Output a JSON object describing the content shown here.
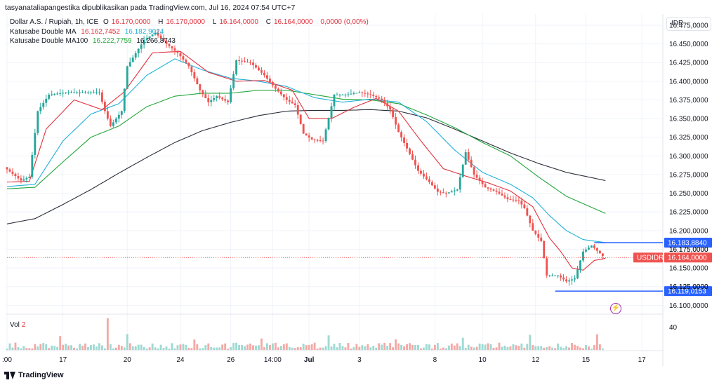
{
  "header": {
    "caption": "tasyanataliapangestika dipublikasikan pada TradingView.com, Jul 16, 2024 07:54 UTC+7",
    "symbol": "Dollar A.S. / Rupiah, 1h, ICE",
    "o_label": "O",
    "o_value": "16.170,0000",
    "h_label": "H",
    "h_value": "16.170,0000",
    "l_label": "L",
    "l_value": "16.164,0000",
    "c_label": "C",
    "c_value": "16.164,0000",
    "change": "0,0000 (0,00%)",
    "ma_name": "Katusabe Double MA",
    "ma_value1": "16.162,7452",
    "ma_value2": "16.182,9024",
    "ma100_name": "Katusabe Double MA100",
    "ma100_value1": "16.222,7759",
    "ma100_value2": "16.266,8743"
  },
  "currency": "IDR",
  "volume": {
    "label": "Vol",
    "value": "2",
    "axis_label": "40"
  },
  "watermark": "TradingView",
  "colors": {
    "up": "#26a69a",
    "down": "#ef5350",
    "ma_fast": "#e0323e",
    "ma_slow": "#22b2d8",
    "ma100_fast": "#23a63b",
    "ma100_slow": "#2a2e39",
    "price_line": "#2962ff",
    "grid": "#f0f3fa"
  },
  "icons": {
    "flash": "flash-icon",
    "logo": "tradingview-logo-icon"
  },
  "chart_data": {
    "type": "candlestick",
    "price_axis": {
      "ticks": [
        "16.475,0000",
        "16.450,0000",
        "16.425,0000",
        "16.400,0000",
        "16.375,0000",
        "16.350,0000",
        "16.325,0000",
        "16.300,0000",
        "16.275,0000",
        "16.250,0000",
        "16.225,0000",
        "16.200,0000",
        "16.175,0000",
        "16.150,0000",
        "16.125,0000",
        "16.100,0000"
      ],
      "ylim": [
        16090,
        16490
      ]
    },
    "time_axis": {
      "ticks": [
        {
          "label": ":00",
          "i": 0
        },
        {
          "label": "17",
          "i": 20
        },
        {
          "label": "20",
          "i": 43
        },
        {
          "label": "24",
          "i": 62
        },
        {
          "label": "26",
          "i": 80
        },
        {
          "label": "14:00",
          "i": 95
        },
        {
          "label": "Jul",
          "i": 108
        },
        {
          "label": "3",
          "i": 126
        },
        {
          "label": "8",
          "i": 153
        },
        {
          "label": "10",
          "i": 170
        },
        {
          "label": "12",
          "i": 189
        },
        {
          "label": "15",
          "i": 207
        },
        {
          "label": "17",
          "i": 227
        }
      ],
      "bars": 214,
      "visible_slots": 235
    },
    "labels": {
      "current_price": "16.164,0000",
      "current_symbol": "USDIDR",
      "high_marker": "16.183,8840",
      "low_marker": "16.119,0153",
      "hidden_tick_1": "16.175,0000",
      "hidden_tick_2": "16.125,0000"
    },
    "current_price": 16164,
    "high_marker": 16183.884,
    "low_marker": 16119.0153,
    "anchors": [
      [
        0,
        16285
      ],
      [
        6,
        16267
      ],
      [
        9,
        16272
      ],
      [
        12,
        16360
      ],
      [
        16,
        16382
      ],
      [
        22,
        16385
      ],
      [
        30,
        16385
      ],
      [
        34,
        16385
      ],
      [
        36,
        16360
      ],
      [
        38,
        16340
      ],
      [
        42,
        16360
      ],
      [
        44,
        16420
      ],
      [
        50,
        16455
      ],
      [
        54,
        16465
      ],
      [
        58,
        16450
      ],
      [
        62,
        16438
      ],
      [
        66,
        16420
      ],
      [
        70,
        16388
      ],
      [
        73,
        16372
      ],
      [
        76,
        16380
      ],
      [
        80,
        16372
      ],
      [
        83,
        16428
      ],
      [
        88,
        16425
      ],
      [
        93,
        16408
      ],
      [
        97,
        16390
      ],
      [
        101,
        16375
      ],
      [
        104,
        16368
      ],
      [
        107,
        16330
      ],
      [
        110,
        16322
      ],
      [
        114,
        16320
      ],
      [
        118,
        16382
      ],
      [
        122,
        16382
      ],
      [
        127,
        16385
      ],
      [
        131,
        16382
      ],
      [
        135,
        16375
      ],
      [
        138,
        16362
      ],
      [
        141,
        16332
      ],
      [
        144,
        16310
      ],
      [
        148,
        16280
      ],
      [
        152,
        16265
      ],
      [
        155,
        16252
      ],
      [
        158,
        16250
      ],
      [
        162,
        16255
      ],
      [
        165,
        16305
      ],
      [
        168,
        16275
      ],
      [
        172,
        16258
      ],
      [
        176,
        16252
      ],
      [
        180,
        16242
      ],
      [
        184,
        16240
      ],
      [
        186,
        16230
      ],
      [
        189,
        16200
      ],
      [
        192,
        16186
      ],
      [
        194,
        16140
      ],
      [
        198,
        16140
      ],
      [
        201,
        16132
      ],
      [
        204,
        16136
      ],
      [
        207,
        16172
      ],
      [
        210,
        16180
      ],
      [
        214,
        16166
      ]
    ],
    "ma_fast": [
      [
        0,
        16265
      ],
      [
        8,
        16266
      ],
      [
        14,
        16336
      ],
      [
        24,
        16375
      ],
      [
        34,
        16362
      ],
      [
        42,
        16386
      ],
      [
        52,
        16438
      ],
      [
        62,
        16440
      ],
      [
        72,
        16412
      ],
      [
        82,
        16400
      ],
      [
        92,
        16401
      ],
      [
        102,
        16388
      ],
      [
        108,
        16350
      ],
      [
        116,
        16350
      ],
      [
        124,
        16365
      ],
      [
        132,
        16377
      ],
      [
        140,
        16360
      ],
      [
        148,
        16320
      ],
      [
        156,
        16283
      ],
      [
        164,
        16273
      ],
      [
        172,
        16264
      ],
      [
        180,
        16253
      ],
      [
        188,
        16232
      ],
      [
        194,
        16190
      ],
      [
        198,
        16172
      ],
      [
        202,
        16150
      ],
      [
        206,
        16147
      ],
      [
        210,
        16160
      ],
      [
        214,
        16163
      ]
    ],
    "ma_slow": [
      [
        0,
        16259
      ],
      [
        10,
        16262
      ],
      [
        20,
        16320
      ],
      [
        30,
        16356
      ],
      [
        40,
        16370
      ],
      [
        50,
        16408
      ],
      [
        60,
        16430
      ],
      [
        70,
        16415
      ],
      [
        80,
        16404
      ],
      [
        90,
        16400
      ],
      [
        100,
        16393
      ],
      [
        110,
        16378
      ],
      [
        120,
        16372
      ],
      [
        130,
        16376
      ],
      [
        140,
        16372
      ],
      [
        150,
        16346
      ],
      [
        160,
        16308
      ],
      [
        170,
        16278
      ],
      [
        180,
        16262
      ],
      [
        188,
        16244
      ],
      [
        194,
        16220
      ],
      [
        200,
        16200
      ],
      [
        206,
        16188
      ],
      [
        214,
        16184
      ]
    ],
    "ma100_fast": [
      [
        0,
        16256
      ],
      [
        10,
        16258
      ],
      [
        20,
        16292
      ],
      [
        30,
        16325
      ],
      [
        40,
        16340
      ],
      [
        50,
        16366
      ],
      [
        60,
        16380
      ],
      [
        70,
        16384
      ],
      [
        80,
        16384
      ],
      [
        90,
        16388
      ],
      [
        100,
        16388
      ],
      [
        110,
        16382
      ],
      [
        120,
        16376
      ],
      [
        130,
        16375
      ],
      [
        140,
        16370
      ],
      [
        150,
        16355
      ],
      [
        160,
        16338
      ],
      [
        170,
        16318
      ],
      [
        180,
        16300
      ],
      [
        190,
        16272
      ],
      [
        200,
        16246
      ],
      [
        214,
        16223
      ]
    ],
    "ma100_slow": [
      [
        0,
        16209
      ],
      [
        10,
        16216
      ],
      [
        20,
        16235
      ],
      [
        30,
        16255
      ],
      [
        40,
        16277
      ],
      [
        50,
        16298
      ],
      [
        60,
        16318
      ],
      [
        70,
        16334
      ],
      [
        80,
        16345
      ],
      [
        90,
        16354
      ],
      [
        100,
        16360
      ],
      [
        110,
        16361
      ],
      [
        120,
        16361
      ],
      [
        130,
        16362
      ],
      [
        140,
        16360
      ],
      [
        150,
        16351
      ],
      [
        160,
        16336
      ],
      [
        170,
        16320
      ],
      [
        180,
        16304
      ],
      [
        190,
        16290
      ],
      [
        200,
        16278
      ],
      [
        214,
        16267
      ]
    ]
  }
}
